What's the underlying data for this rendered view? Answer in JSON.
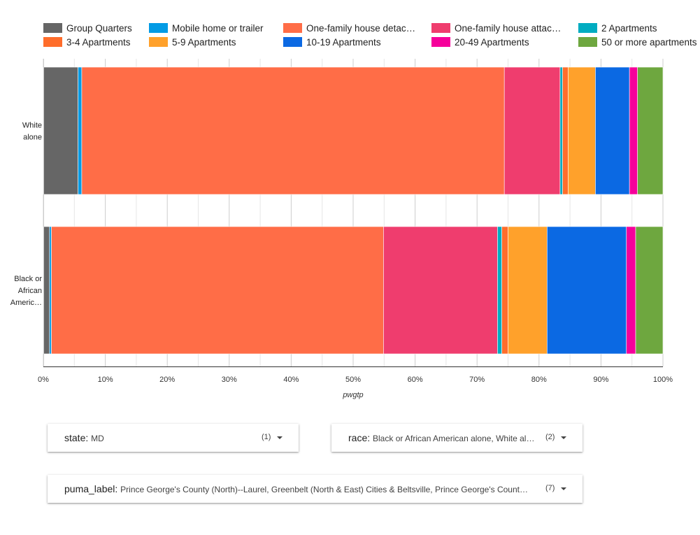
{
  "chart_data": {
    "type": "bar",
    "orientation": "horizontal",
    "stacked": "percent",
    "categories": [
      "White alone",
      "Black or African Americ…"
    ],
    "category_lines": [
      [
        "White",
        "alone"
      ],
      [
        "Black or",
        "African",
        "Americ…"
      ]
    ],
    "series": [
      {
        "name": "Group Quarters",
        "color": "#666666",
        "values": [
          5.6,
          1.0
        ]
      },
      {
        "name": "Mobile home or trailer",
        "color": "#039be5",
        "values": [
          0.6,
          0.3
        ]
      },
      {
        "name": "One-family house detac…",
        "color": "#ff6d47",
        "values": [
          68.2,
          53.6
        ]
      },
      {
        "name": "One-family house attac…",
        "color": "#ef3d6e",
        "values": [
          9.0,
          18.4
        ]
      },
      {
        "name": "2 Apartments",
        "color": "#00acc1",
        "values": [
          0.4,
          0.7
        ]
      },
      {
        "name": "3-4 Apartments",
        "color": "#ff6d2b",
        "values": [
          0.9,
          1.0
        ]
      },
      {
        "name": "5-9 Apartments",
        "color": "#ffa12b",
        "values": [
          4.4,
          6.3
        ]
      },
      {
        "name": "10-19 Apartments",
        "color": "#0b69e3",
        "values": [
          5.5,
          12.8
        ]
      },
      {
        "name": "20-49 Apartments",
        "color": "#f6009b",
        "values": [
          1.3,
          1.5
        ]
      },
      {
        "name": "50 or more apartments",
        "color": "#6ea73f",
        "values": [
          4.1,
          4.4
        ]
      }
    ],
    "x_ticks": [
      "0%",
      "10%",
      "20%",
      "30%",
      "40%",
      "50%",
      "60%",
      "70%",
      "80%",
      "90%",
      "100%"
    ],
    "xlim": [
      0,
      100
    ],
    "xlabel": "pwgtp",
    "grid": "vertical",
    "legend_position": "top"
  },
  "filters": [
    {
      "name": "state",
      "value": "MD",
      "count": "(1)"
    },
    {
      "name": "race",
      "value": "Black or African American alone, White al…",
      "count": "(2)"
    },
    {
      "name": "puma_label",
      "value": "Prince George's County (North)--Laurel, Greenbelt (North & East) Cities & Beltsville, Prince George's Count…",
      "count": "(7)"
    }
  ]
}
